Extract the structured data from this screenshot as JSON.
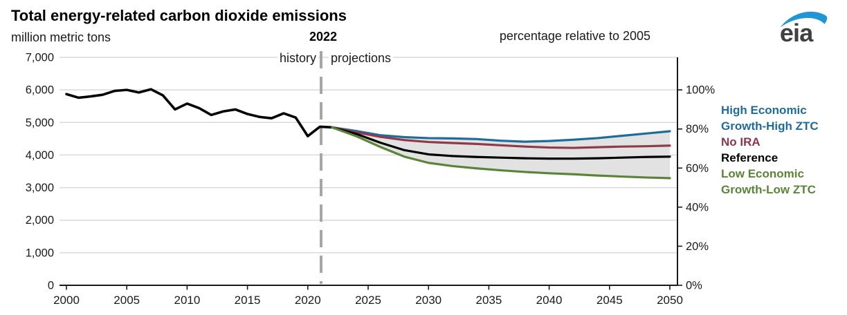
{
  "header": {
    "title": "Total energy-related carbon dioxide emissions",
    "unit_left": "million metric tons",
    "unit_right": "percentage relative to 2005",
    "divider_label": "2022",
    "history_label": "history",
    "projections_label": "projections"
  },
  "logo": {
    "text": "eia",
    "swoosh_color": "#2196d4",
    "text_color": "#404040"
  },
  "legend": {
    "lines": [
      {
        "text": "High Economic",
        "style": "color:#1e6c99"
      },
      {
        "text": "Growth-High ZTC",
        "style": "color:#1e6c99"
      },
      {
        "text": "No IRA",
        "style": "color:#8e3546"
      },
      {
        "text": "Reference",
        "style": "color:#000000"
      },
      {
        "text": "Low Economic",
        "style": "color:#5a8538"
      },
      {
        "text": "Growth-Low ZTC",
        "style": "color:#5a8538"
      }
    ]
  },
  "chart_data": {
    "type": "line",
    "title": "Total energy-related carbon dioxide emissions",
    "ylabel_left": "million metric tons",
    "ylabel_right": "percentage relative to 2005",
    "x_range": [
      2000,
      2050
    ],
    "x_ticks": [
      2000,
      2005,
      2010,
      2015,
      2020,
      2025,
      2030,
      2035,
      2040,
      2045,
      2050
    ],
    "y_left": {
      "min": 0,
      "max": 7000,
      "ticks": [
        {
          "v": 7000,
          "label": "7,000"
        },
        {
          "v": 6000,
          "label": "6,000"
        },
        {
          "v": 5000,
          "label": "5,000"
        },
        {
          "v": 4000,
          "label": "4,000"
        },
        {
          "v": 3000,
          "label": "3,000"
        },
        {
          "v": 2000,
          "label": "2,000"
        },
        {
          "v": 1000,
          "label": "1,000"
        },
        {
          "v": 0,
          "label": "0"
        }
      ]
    },
    "y_right": {
      "value_of_100pct": 6000,
      "ticks": [
        {
          "pct": 100,
          "label": "100%"
        },
        {
          "pct": 80,
          "label": "80%"
        },
        {
          "pct": 60,
          "label": "60%"
        },
        {
          "pct": 40,
          "label": "40%"
        },
        {
          "pct": 20,
          "label": "20%"
        },
        {
          "pct": 0,
          "label": "0%"
        }
      ]
    },
    "divider": {
      "year": 2021.1,
      "label": "2022",
      "color": "#a6a6a6"
    },
    "grid_color": "#d9d9d9",
    "axis_color": "#1a1a1a",
    "band": {
      "between": [
        "High Economic Growth-High ZTC",
        "Low Economic Growth-Low ZTC"
      ],
      "color": "#e2e2e2"
    },
    "series": [
      {
        "name": "History",
        "color": "#000000",
        "width": 3.6,
        "x": [
          2000,
          2001,
          2002,
          2003,
          2004,
          2005,
          2006,
          2007,
          2008,
          2009,
          2010,
          2011,
          2012,
          2013,
          2014,
          2015,
          2016,
          2017,
          2018,
          2019,
          2020,
          2021,
          2022
        ],
        "values": [
          5870,
          5760,
          5800,
          5850,
          5970,
          6000,
          5920,
          6020,
          5830,
          5400,
          5580,
          5440,
          5230,
          5340,
          5400,
          5260,
          5170,
          5130,
          5280,
          5150,
          4580,
          4870,
          4850
        ]
      },
      {
        "name": "High Economic Growth-High ZTC",
        "color": "#1e6c99",
        "width": 3.2,
        "x": [
          2022,
          2024,
          2026,
          2028,
          2030,
          2032,
          2034,
          2036,
          2038,
          2040,
          2042,
          2044,
          2046,
          2048,
          2050
        ],
        "values": [
          4850,
          4740,
          4610,
          4550,
          4520,
          4510,
          4490,
          4440,
          4410,
          4430,
          4470,
          4520,
          4590,
          4660,
          4730
        ]
      },
      {
        "name": "No IRA",
        "color": "#90394a",
        "width": 3.2,
        "x": [
          2022,
          2024,
          2026,
          2028,
          2030,
          2032,
          2034,
          2036,
          2038,
          2040,
          2042,
          2044,
          2046,
          2048,
          2050
        ],
        "values": [
          4850,
          4700,
          4560,
          4460,
          4400,
          4370,
          4340,
          4300,
          4260,
          4230,
          4220,
          4240,
          4260,
          4270,
          4290
        ]
      },
      {
        "name": "Reference",
        "color": "#000000",
        "width": 3.2,
        "x": [
          2022,
          2024,
          2026,
          2028,
          2030,
          2032,
          2034,
          2036,
          2038,
          2040,
          2042,
          2044,
          2046,
          2048,
          2050
        ],
        "values": [
          4850,
          4650,
          4380,
          4150,
          4020,
          3970,
          3940,
          3920,
          3900,
          3890,
          3890,
          3900,
          3920,
          3940,
          3950
        ]
      },
      {
        "name": "Low Economic Growth-Low ZTC",
        "color": "#5a8538",
        "width": 3.2,
        "x": [
          2022,
          2024,
          2026,
          2028,
          2030,
          2032,
          2034,
          2036,
          2038,
          2040,
          2042,
          2044,
          2046,
          2048,
          2050
        ],
        "values": [
          4850,
          4580,
          4250,
          3950,
          3760,
          3660,
          3590,
          3530,
          3480,
          3440,
          3410,
          3370,
          3340,
          3310,
          3290
        ]
      }
    ]
  }
}
